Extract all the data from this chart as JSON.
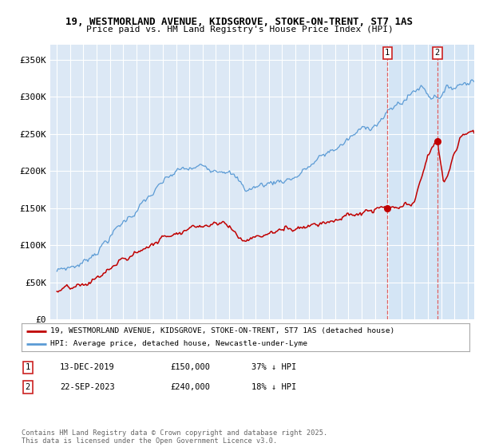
{
  "title_line1": "19, WESTMORLAND AVENUE, KIDSGROVE, STOKE-ON-TRENT, ST7 1AS",
  "title_line2": "Price paid vs. HM Land Registry's House Price Index (HPI)",
  "background_color": "#ffffff",
  "plot_bg_color": "#dce8f5",
  "shade_color": "#cfe0f2",
  "grid_color": "#ffffff",
  "hpi_color": "#5b9bd5",
  "price_color": "#c00000",
  "dashed_line_color": "#e06060",
  "ylim": [
    0,
    370000
  ],
  "yticks": [
    0,
    50000,
    100000,
    150000,
    200000,
    250000,
    300000,
    350000
  ],
  "ytick_labels": [
    "£0",
    "£50K",
    "£100K",
    "£150K",
    "£200K",
    "£250K",
    "£300K",
    "£350K"
  ],
  "xstart_year": 1995,
  "xend_year": 2026,
  "annotation1": {
    "label": "1",
    "x": 2019.95,
    "price": 150000,
    "date": "13-DEC-2019",
    "amount": "£150,000",
    "pct": "37% ↓ HPI"
  },
  "annotation2": {
    "label": "2",
    "x": 2023.72,
    "price": 240000,
    "date": "22-SEP-2023",
    "amount": "£240,000",
    "pct": "18% ↓ HPI"
  },
  "legend_line1": "19, WESTMORLAND AVENUE, KIDSGROVE, STOKE-ON-TRENT, ST7 1AS (detached house)",
  "legend_line2": "HPI: Average price, detached house, Newcastle-under-Lyme",
  "footnote": "Contains HM Land Registry data © Crown copyright and database right 2025.\nThis data is licensed under the Open Government Licence v3.0.",
  "table_row1": [
    "1",
    "13-DEC-2019",
    "£150,000",
    "37% ↓ HPI"
  ],
  "table_row2": [
    "2",
    "22-SEP-2023",
    "£240,000",
    "18% ↓ HPI"
  ]
}
